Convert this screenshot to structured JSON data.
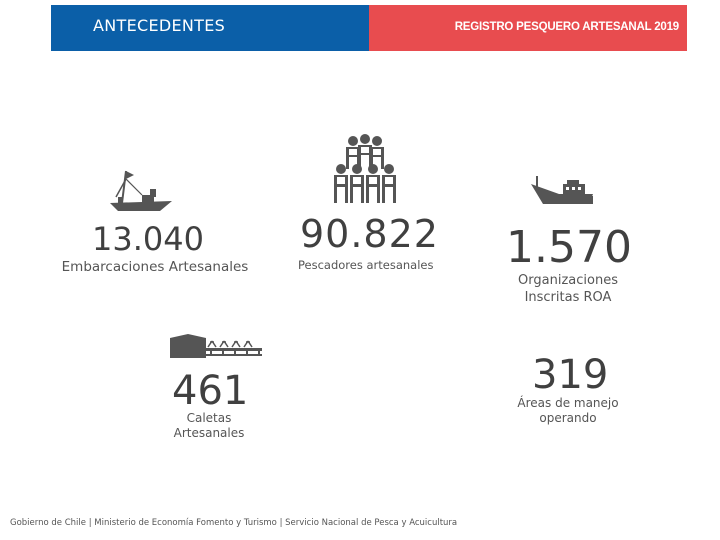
{
  "header": {
    "title": "ANTECEDENTES",
    "subtitle": "REGISTRO PESQUERO ARTESANAL 2019",
    "colors": {
      "left": "#0b5fa8",
      "right": "#e84c4f"
    }
  },
  "stats": {
    "embarcaciones": {
      "value": "13.040",
      "label": "Embarcaciones Artesanales",
      "icon": "fishing-boat-icon"
    },
    "pescadores": {
      "value": "90.822",
      "label": "Pescadores artesanales",
      "icon": "fishermen-group-icon"
    },
    "organizaciones": {
      "value": "1.570",
      "label_line1": "Organizaciones",
      "label_line2": "Inscritas ROA",
      "icon": "trawler-ship-icon"
    },
    "caletas": {
      "value": "461",
      "label_line1": "Caletas",
      "label_line2": "Artesanales",
      "icon": "cove-harbor-icon"
    },
    "areas": {
      "value": "319",
      "label_line1": "Áreas de manejo",
      "label_line2": "operando"
    }
  },
  "footer": {
    "text": "Gobierno de Chile | Ministerio de Economía Fomento y Turismo | Servicio Nacional de Pesca y Acuicultura"
  }
}
